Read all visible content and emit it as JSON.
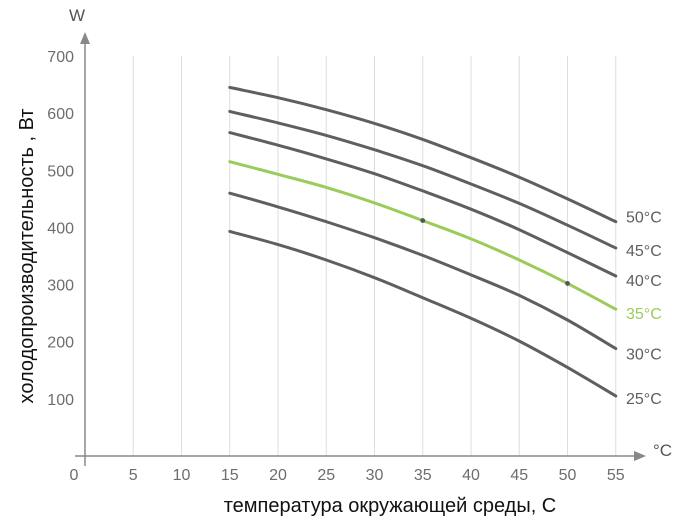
{
  "chart_data": {
    "type": "line",
    "xlabel": "температура окружающей среды, С",
    "ylabel": "холодопроизводительность , Вт",
    "x_unit": "°C",
    "y_unit": "W",
    "xlim": [
      0,
      55
    ],
    "ylim": [
      0,
      700
    ],
    "x_ticks": [
      0,
      5,
      10,
      15,
      20,
      25,
      30,
      35,
      40,
      45,
      50,
      55
    ],
    "y_ticks": [
      100,
      200,
      300,
      400,
      500,
      600,
      700
    ],
    "grid": "vertical",
    "colors": {
      "default": "#5f5f5f",
      "highlight": "#9bcb5a",
      "axis": "#888888",
      "grid": "#dddddd"
    },
    "series": [
      {
        "name": "50°C",
        "x": [
          15,
          20,
          25,
          30,
          35,
          40,
          45,
          50,
          55
        ],
        "y": [
          645,
          627,
          606,
          582,
          554,
          522,
          488,
          450,
          410
        ]
      },
      {
        "name": "45°C",
        "x": [
          15,
          20,
          25,
          30,
          35,
          40,
          45,
          50,
          55
        ],
        "y": [
          603,
          583,
          561,
          536,
          508,
          476,
          442,
          404,
          364
        ]
      },
      {
        "name": "40°C",
        "x": [
          15,
          20,
          25,
          30,
          35,
          40,
          45,
          50,
          55
        ],
        "y": [
          566,
          544,
          520,
          494,
          464,
          432,
          396,
          356,
          315
        ]
      },
      {
        "name": "35°C",
        "highlight": true,
        "x": [
          15,
          20,
          25,
          30,
          35,
          40,
          45,
          50,
          55
        ],
        "y": [
          515,
          493,
          470,
          443,
          412,
          380,
          343,
          302,
          257
        ]
      },
      {
        "name": "30°C",
        "x": [
          15,
          20,
          25,
          30,
          35,
          40,
          45,
          50,
          55
        ],
        "y": [
          460,
          436,
          410,
          382,
          351,
          317,
          281,
          238,
          188
        ]
      },
      {
        "name": "25°C",
        "x": [
          15,
          20,
          25,
          30,
          35,
          40,
          45,
          50,
          55
        ],
        "y": [
          393,
          370,
          343,
          312,
          277,
          241,
          201,
          155,
          105
        ]
      }
    ],
    "markers": [
      {
        "series": "35°C",
        "x": 35,
        "y": 412
      },
      {
        "series": "35°C",
        "x": 50,
        "y": 302
      }
    ]
  }
}
